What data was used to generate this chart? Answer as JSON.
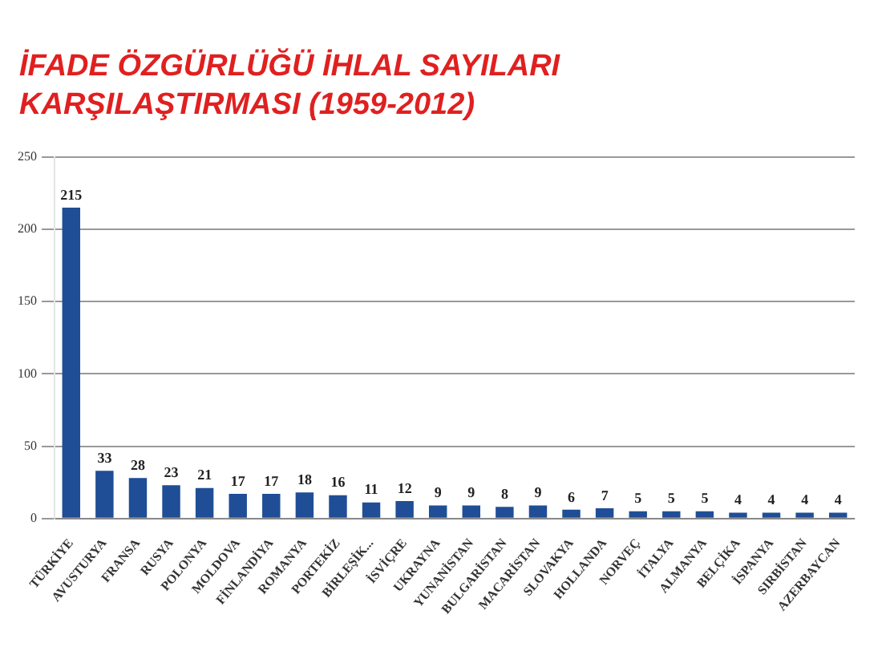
{
  "chart_data": {
    "type": "bar",
    "title": "İFADE ÖZGÜRLÜĞÜ İHLAL SAYILARI KARŞILAŞTIRMASI (1959-2012)",
    "categories": [
      "TÜRKİYE",
      "AVUSTURYA",
      "FRANSA",
      "RUSYA",
      "POLONYA",
      "MOLDOVA",
      "FİNLANDİYA",
      "ROMANYA",
      "PORTEKİZ",
      "BİRLEŞİK...",
      "İSVİÇRE",
      "UKRAYNA",
      "YUNANİSTAN",
      "BULGARİSTAN",
      "MACARİSTAN",
      "SLOVAKYA",
      "HOLLANDA",
      "NORVEÇ",
      "İTALYA",
      "ALMANYA",
      "BELÇİKA",
      "İSPANYA",
      "SIRBİSTAN",
      "AZERBAYCAN"
    ],
    "values": [
      215,
      33,
      28,
      23,
      21,
      17,
      17,
      18,
      16,
      11,
      12,
      9,
      9,
      8,
      9,
      6,
      7,
      5,
      5,
      5,
      4,
      4,
      4,
      4
    ],
    "color": "#1f4e96",
    "ylim": [
      0,
      250
    ],
    "yticks": [
      0,
      50,
      100,
      150,
      200,
      250
    ],
    "grid": "y",
    "data_labels": true
  }
}
